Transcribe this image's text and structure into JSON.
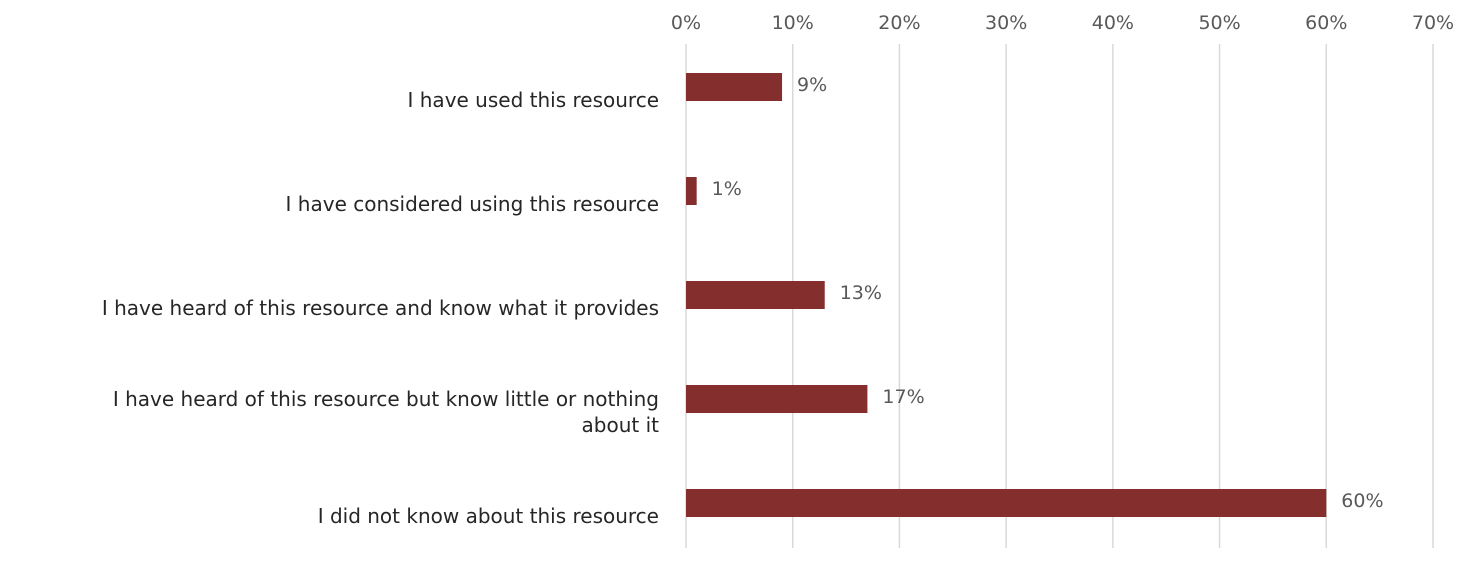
{
  "chart_data": {
    "type": "bar",
    "orientation": "horizontal",
    "categories": [
      [
        "I have used this resource"
      ],
      [
        "I have considered using this resource"
      ],
      [
        "I have heard of this resource and know what it provides"
      ],
      [
        "I have heard of this resource but know little or nothing",
        "about it"
      ],
      [
        "I did not know about this resource"
      ]
    ],
    "values": [
      9,
      1,
      13,
      17,
      60
    ],
    "data_labels": [
      "9%",
      "1%",
      "13%",
      "17%",
      "60%"
    ],
    "x_ticks": [
      0,
      10,
      20,
      30,
      40,
      50,
      60,
      70
    ],
    "x_tick_labels": [
      "0%",
      "10%",
      "20%",
      "30%",
      "40%",
      "50%",
      "60%",
      "70%"
    ],
    "xlim": [
      0,
      70
    ],
    "x_axis_position": "top",
    "grid": true,
    "legend": "none",
    "title": "",
    "xlabel": "",
    "ylabel": ""
  },
  "colors": {
    "bar": "#852e2e",
    "grid": "#d9d9d9",
    "tick_text": "#595959",
    "category_text": "#262626"
  }
}
